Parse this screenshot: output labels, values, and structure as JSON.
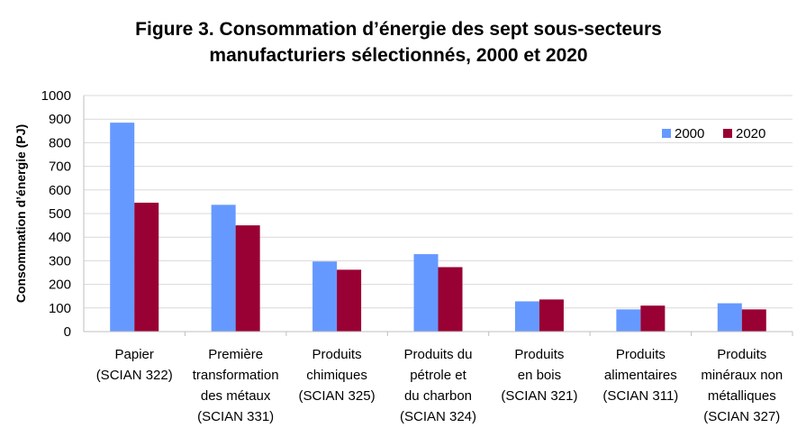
{
  "chart_data": {
    "type": "bar",
    "title_lines": [
      "Figure 3. Consommation d’énergie des sept sous-secteurs",
      "manufacturiers sélectionnés, 2000 et 2020"
    ],
    "ylabel": "Consommation d’énergie (PJ)",
    "xlabel": "",
    "ylim": [
      0,
      1000
    ],
    "ytick_step": 100,
    "yticks": [
      "0",
      "100",
      "200",
      "300",
      "400",
      "500",
      "600",
      "700",
      "800",
      "900",
      "1000"
    ],
    "grid": true,
    "legend_position": "top-right",
    "categories": [
      [
        "Papier",
        "(SCIAN 322)"
      ],
      [
        "Première",
        "transformation",
        "des métaux",
        "(SCIAN 331)"
      ],
      [
        "Produits",
        "chimiques",
        "(SCIAN 325)"
      ],
      [
        "Produits du",
        "pétrole et",
        "du charbon",
        "(SCIAN 324)"
      ],
      [
        "Produits",
        "en bois",
        "(SCIAN 321)"
      ],
      [
        "Produits",
        "alimentaires",
        "(SCIAN 311)"
      ],
      [
        "Produits",
        "minéraux non",
        "métalliques",
        "(SCIAN 327)"
      ]
    ],
    "series": [
      {
        "name": "2000",
        "color": "#6699ff",
        "values": [
          885,
          537,
          297,
          328,
          128,
          94,
          120
        ]
      },
      {
        "name": "2020",
        "color": "#990033",
        "values": [
          546,
          450,
          262,
          273,
          136,
          110,
          94
        ]
      }
    ]
  }
}
